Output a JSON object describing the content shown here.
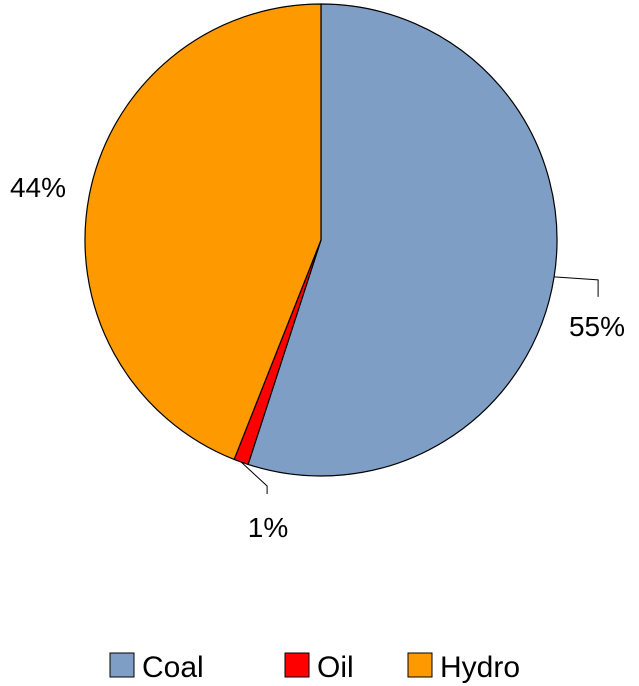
{
  "chart_data": {
    "type": "pie",
    "categories": [
      "Coal",
      "Oil",
      "Hydro"
    ],
    "values": [
      55,
      1,
      44
    ],
    "data_labels": [
      "55%",
      "1%",
      "44%"
    ],
    "colors": [
      "#7F9EC6",
      "#FF0000",
      "#FF9900"
    ],
    "legend": {
      "entries": [
        "Coal",
        "Oil",
        "Hydro"
      ],
      "placement": "bottom"
    },
    "start_angle": "12 o'clock",
    "direction": "clockwise"
  }
}
